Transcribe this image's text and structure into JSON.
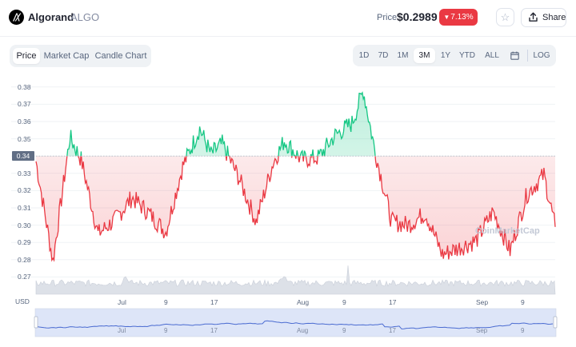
{
  "header": {
    "asset_name": "Algorand",
    "asset_symbol": "ALGO",
    "price_label": "Price:",
    "price_value": "$0.2989",
    "change_text": "7.13%",
    "change_direction": "down",
    "share_label": "Share",
    "icons": [
      "algorand-logo",
      "star-icon",
      "share-icon"
    ]
  },
  "view_tabs": [
    {
      "label": "Price",
      "active": true
    },
    {
      "label": "Market Cap",
      "active": false
    },
    {
      "label": "Candle Chart",
      "active": false
    }
  ],
  "range_tabs": [
    {
      "label": "1D",
      "active": false
    },
    {
      "label": "7D",
      "active": false
    },
    {
      "label": "1M",
      "active": false
    },
    {
      "label": "3M",
      "active": true
    },
    {
      "label": "1Y",
      "active": false
    },
    {
      "label": "YTD",
      "active": false
    },
    {
      "label": "ALL",
      "active": false
    },
    {
      "label": "LOG",
      "active": false
    }
  ],
  "calendar_icon": "calendar-icon",
  "chart": {
    "currency_label": "USD",
    "current_price_tag": "0.34",
    "watermark": "CoinMarketCap",
    "colors": {
      "up": "#16c784",
      "down": "#ea3943",
      "volume": "#dde1e8",
      "navigator": "#4a6bd1"
    }
  },
  "chart_data": {
    "type": "line",
    "ylabel": "",
    "xlabel": "",
    "ylim": [
      0.26,
      0.38
    ],
    "y_ticks": [
      "0.38",
      "0.37",
      "0.36",
      "0.35",
      "0.34",
      "0.33",
      "0.32",
      "0.31",
      "0.30",
      "0.29",
      "0.28",
      "0.27"
    ],
    "x_ticks": [
      "Jul",
      "9",
      "17",
      "Aug",
      "9",
      "17",
      "Sep",
      "9"
    ],
    "baseline": 0.34,
    "x_range": [
      "2021-06-18",
      "2021-09-18"
    ],
    "x": [
      "2021-06-18",
      "2021-06-21",
      "2021-06-24",
      "2021-06-26",
      "2021-06-29",
      "2021-07-02",
      "2021-07-05",
      "2021-07-08",
      "2021-07-11",
      "2021-07-14",
      "2021-07-17",
      "2021-07-19",
      "2021-07-21",
      "2021-07-24",
      "2021-07-27",
      "2021-07-30",
      "2021-08-01",
      "2021-08-04",
      "2021-08-07",
      "2021-08-10",
      "2021-08-13",
      "2021-08-15",
      "2021-08-17",
      "2021-08-20",
      "2021-08-23",
      "2021-08-26",
      "2021-08-29",
      "2021-09-01",
      "2021-09-04",
      "2021-09-07",
      "2021-09-10",
      "2021-09-13",
      "2021-09-16",
      "2021-09-18"
    ],
    "values": [
      0.337,
      0.279,
      0.351,
      0.338,
      0.295,
      0.303,
      0.316,
      0.307,
      0.296,
      0.334,
      0.356,
      0.341,
      0.347,
      0.327,
      0.302,
      0.336,
      0.349,
      0.338,
      0.339,
      0.352,
      0.359,
      0.378,
      0.344,
      0.302,
      0.3,
      0.307,
      0.283,
      0.287,
      0.291,
      0.308,
      0.285,
      0.318,
      0.329,
      0.299
    ]
  },
  "navigator": {
    "x_ticks": [
      "Jul",
      "9",
      "17",
      "Aug",
      "9",
      "17",
      "Sep",
      "9"
    ]
  }
}
